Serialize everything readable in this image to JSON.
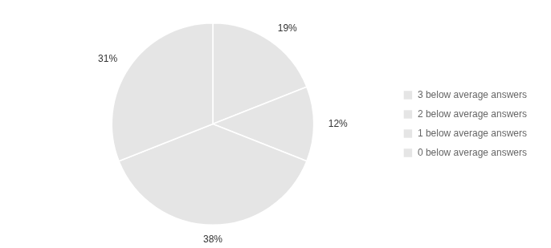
{
  "chart_data": {
    "type": "pie",
    "categories": [
      "3 below average answers",
      "2 below average answers",
      "1 below average answers",
      "0 below average answers"
    ],
    "values": [
      19,
      12,
      38,
      31
    ],
    "value_labels": [
      "19%",
      "12%",
      "38%",
      "31%"
    ],
    "data_labels": true,
    "legend": "right"
  }
}
